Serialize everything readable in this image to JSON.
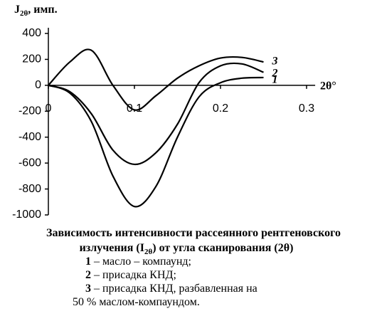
{
  "chart_data": {
    "type": "line",
    "ylabel": [
      "J",
      "2θ",
      ", имп."
    ],
    "xlabel": "2θ°",
    "caption": [
      [
        "Зависимость интенсивности рассеянного рентгеновского"
      ],
      [
        "излучения (I",
        "2θ",
        ") от угла сканирования (2θ)"
      ]
    ],
    "x": [
      0,
      0.025,
      0.05,
      0.075,
      0.1,
      0.125,
      0.15,
      0.175,
      0.2,
      0.225,
      0.25
    ],
    "series": [
      {
        "name": "1",
        "color": "#000000",
        "description": [
          "– масло – компаунд;"
        ],
        "values": [
          0,
          -60,
          -280,
          -700,
          -935,
          -780,
          -400,
          -90,
          20,
          55,
          60
        ]
      },
      {
        "name": "2",
        "color": "#000000",
        "description": [
          "– присадка КНД;"
        ],
        "values": [
          0,
          -50,
          -220,
          -500,
          -610,
          -520,
          -300,
          20,
          150,
          165,
          100
        ]
      },
      {
        "name": "3",
        "color": "#000000",
        "description": [
          "– присадка КНД, разбавленная на",
          "50 % маслом-компаундом."
        ],
        "values": [
          0,
          180,
          270,
          0,
          -190,
          -80,
          55,
          150,
          210,
          215,
          180
        ]
      }
    ],
    "xlim": [
      0,
      0.31
    ],
    "xticks": [
      0,
      0.1,
      0.2,
      0.3
    ],
    "ylim": [
      -1000,
      400
    ],
    "yticks": [
      400,
      200,
      0,
      -200,
      -400,
      -600,
      -800,
      -1000
    ]
  }
}
